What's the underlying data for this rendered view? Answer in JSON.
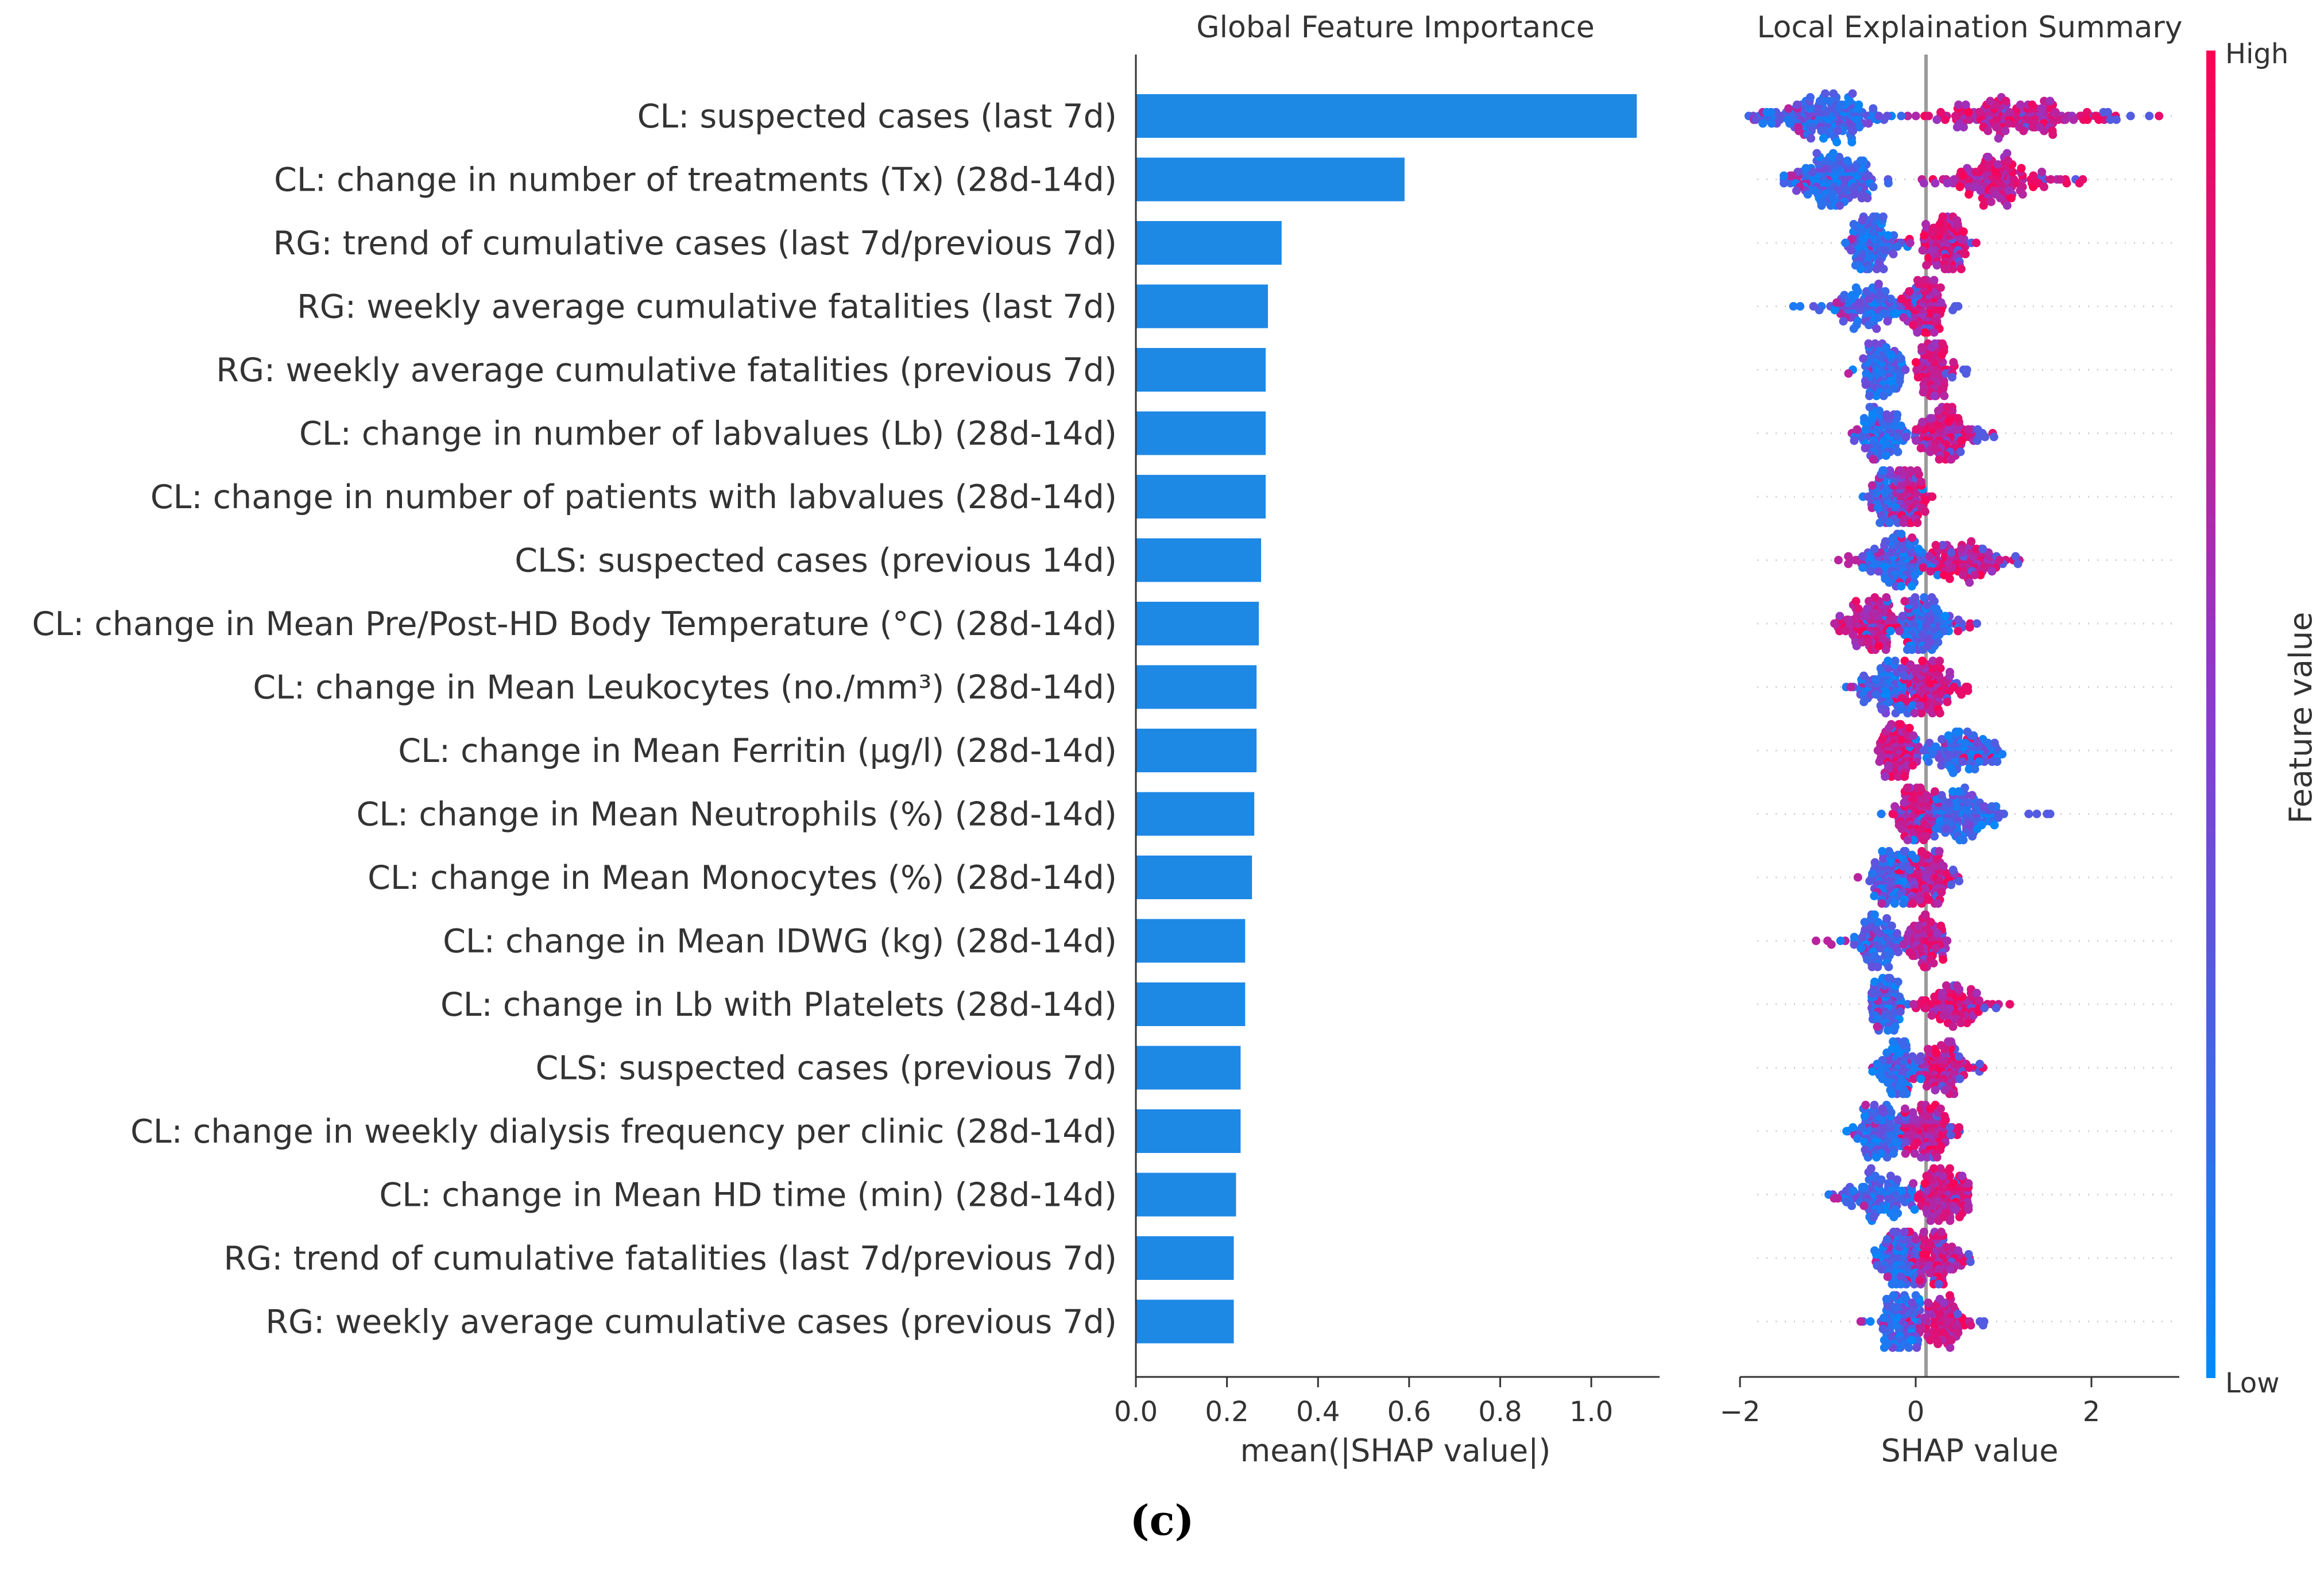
{
  "caption": "(c)",
  "colors": {
    "bar": "#1e88e5",
    "low": "#008afb",
    "mid": "#8a3bd0",
    "high": "#ff0052",
    "missing": "#808080",
    "axis": "#333333"
  },
  "chart_data": [
    {
      "type": "bar",
      "orientation": "horizontal",
      "title": "Global Feature Importance",
      "xlabel": "mean(|SHAP value|)",
      "xlim": [
        0.0,
        1.15
      ],
      "xticks": [
        "0.0",
        "0.2",
        "0.4",
        "0.6",
        "0.8",
        "1.0"
      ],
      "categories": [
        "CL: suspected cases (last 7d)",
        "CL: change in number of treatments (Tx) (28d-14d)",
        "RG: trend of cumulative cases (last 7d/previous 7d)",
        "RG: weekly average cumulative fatalities (last 7d)",
        "RG: weekly average cumulative fatalities (previous 7d)",
        "CL: change in number of labvalues (Lb) (28d-14d)",
        "CL: change in number of patients with labvalues (28d-14d)",
        "CLS: suspected cases (previous 14d)",
        "CL: change in Mean Pre/Post-HD Body Temperature (°C) (28d-14d)",
        "CL: change in Mean Leukocytes (no./mm³) (28d-14d)",
        "CL: change in Mean Ferritin (µg/l) (28d-14d)",
        "CL: change in Mean Neutrophils (%) (28d-14d)",
        "CL: change in Mean Monocytes (%) (28d-14d)",
        "CL: change in Mean IDWG (kg) (28d-14d)",
        "CL: change in Lb with Platelets (28d-14d)",
        "CLS: suspected cases (previous 7d)",
        "CL: change in weekly dialysis frequency per clinic (28d-14d)",
        "CL: change in Mean HD time (min) (28d-14d)",
        "RG: trend of cumulative fatalities (last 7d/previous 7d)",
        "RG: weekly average cumulative cases (previous 7d)"
      ],
      "values": [
        1.1,
        0.59,
        0.32,
        0.29,
        0.285,
        0.285,
        0.285,
        0.275,
        0.27,
        0.265,
        0.265,
        0.26,
        0.255,
        0.24,
        0.24,
        0.23,
        0.23,
        0.22,
        0.215,
        0.215
      ]
    },
    {
      "type": "scatter",
      "subtype": "beeswarm",
      "title": "Local Explaination Summary",
      "xlabel": "SHAP value",
      "xlim": [
        -2.0,
        3.0
      ],
      "xticks": [
        "−2",
        "0",
        "2"
      ],
      "colorbar": {
        "label": "Feature value",
        "high": "High",
        "low": "Low"
      },
      "rows": [
        {
          "min": -1.9,
          "low_center": -1.0,
          "low_width": 0.7,
          "high_center": 1.0,
          "high_width": 0.9,
          "max": 2.9,
          "density": 1.0
        },
        {
          "min": -1.5,
          "low_center": -0.9,
          "low_width": 0.5,
          "high_center": 0.9,
          "high_width": 0.7,
          "max": 2.0,
          "density": 0.9
        },
        {
          "min": -0.8,
          "low_center": -0.5,
          "low_width": 0.3,
          "high_center": 0.3,
          "high_width": 0.3,
          "max": 0.7,
          "density": 0.75
        },
        {
          "min": -1.5,
          "low_center": -0.5,
          "low_width": 0.5,
          "high_center": 0.1,
          "high_width": 0.2,
          "max": 0.5,
          "density": 0.65
        },
        {
          "min": -1.0,
          "low_center": -0.4,
          "low_width": 0.3,
          "high_center": 0.2,
          "high_width": 0.2,
          "max": 0.6,
          "density": 0.65
        },
        {
          "min": -0.8,
          "low_center": -0.4,
          "low_width": 0.3,
          "high_center": 0.3,
          "high_width": 0.3,
          "max": 0.9,
          "density": 0.7
        },
        {
          "min": -0.6,
          "low_center": -0.3,
          "low_width": 0.2,
          "high_center": -0.1,
          "high_width": 0.2,
          "max": 0.2,
          "density": 0.6
        },
        {
          "min": -0.9,
          "low_center": -0.2,
          "low_width": 0.4,
          "high_center": 0.5,
          "high_width": 0.5,
          "max": 1.4,
          "density": 0.7
        },
        {
          "min": -1.0,
          "low_center": 0.1,
          "low_width": 0.3,
          "high_center": -0.5,
          "high_width": 0.4,
          "max": 0.7,
          "density": 0.75
        },
        {
          "min": -0.8,
          "low_center": -0.3,
          "low_width": 0.3,
          "high_center": 0.1,
          "high_width": 0.3,
          "max": 0.6,
          "density": 0.65
        },
        {
          "min": -0.6,
          "low_center": 0.5,
          "low_width": 0.4,
          "high_center": -0.2,
          "high_width": 0.2,
          "max": 1.1,
          "density": 0.65
        },
        {
          "min": -0.5,
          "low_center": 0.5,
          "low_width": 0.5,
          "high_center": 0.0,
          "high_width": 0.2,
          "max": 1.6,
          "density": 0.75
        },
        {
          "min": -0.8,
          "low_center": -0.3,
          "low_width": 0.3,
          "high_center": 0.1,
          "high_width": 0.3,
          "max": 0.5,
          "density": 0.65
        },
        {
          "min": -1.3,
          "low_center": -0.4,
          "low_width": 0.3,
          "high_center": 0.1,
          "high_width": 0.2,
          "max": 0.4,
          "density": 0.6
        },
        {
          "min": -0.5,
          "low_center": -0.3,
          "low_width": 0.2,
          "high_center": 0.4,
          "high_width": 0.4,
          "max": 1.1,
          "density": 0.6
        },
        {
          "min": -0.5,
          "low_center": -0.2,
          "low_width": 0.2,
          "high_center": 0.3,
          "high_width": 0.3,
          "max": 0.8,
          "density": 0.65
        },
        {
          "min": -0.8,
          "low_center": -0.4,
          "low_width": 0.3,
          "high_center": 0.1,
          "high_width": 0.3,
          "max": 0.5,
          "density": 0.7
        },
        {
          "min": -1.0,
          "low_center": -0.4,
          "low_width": 0.4,
          "high_center": 0.3,
          "high_width": 0.3,
          "max": 0.6,
          "density": 0.7
        },
        {
          "min": -0.5,
          "low_center": -0.2,
          "low_width": 0.2,
          "high_center": 0.2,
          "high_width": 0.3,
          "max": 0.7,
          "density": 0.65
        },
        {
          "min": -0.9,
          "low_center": -0.2,
          "low_width": 0.3,
          "high_center": 0.3,
          "high_width": 0.3,
          "max": 0.8,
          "density": 0.6
        }
      ]
    }
  ]
}
